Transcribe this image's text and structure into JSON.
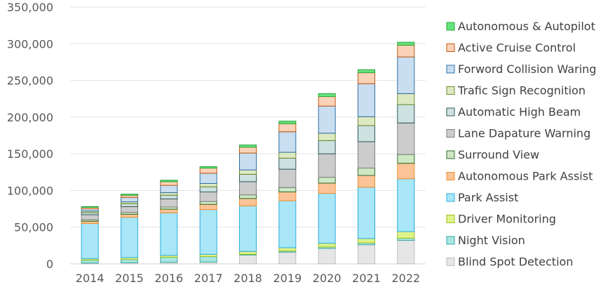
{
  "chart_data": {
    "type": "bar",
    "stacked": true,
    "title": "",
    "xlabel": "",
    "ylabel": "",
    "ylim": [
      0,
      350000
    ],
    "yticks": [
      0,
      50000,
      100000,
      150000,
      200000,
      250000,
      300000,
      350000
    ],
    "ytick_labels": [
      "0",
      "50,000",
      "100,000",
      "150,000",
      "200,000",
      "250,000",
      "300,000",
      "350,000"
    ],
    "grid": true,
    "legend_position": "right",
    "categories": [
      "2014",
      "2015",
      "2016",
      "2017",
      "2018",
      "2019",
      "2020",
      "2021",
      "2022"
    ],
    "series": [
      {
        "name": "Blind Spot Detection",
        "color": "#e6e6e6",
        "edge": "#bfbfbf",
        "values": [
          1000,
          1500,
          2000,
          2500,
          12000,
          16000,
          21000,
          26000,
          32000
        ]
      },
      {
        "name": "Night Vision",
        "color": "#a8e6e0",
        "edge": "#3aa8a0",
        "values": [
          4000,
          4500,
          7000,
          7500,
          1000,
          1500,
          2000,
          2500,
          3000
        ]
      },
      {
        "name": "Driver Monitoring",
        "color": "#dff28a",
        "edge": "#9ec21f",
        "values": [
          2000,
          2500,
          2500,
          3000,
          4000,
          4500,
          5000,
          6000,
          9000
        ]
      },
      {
        "name": "Park Assist",
        "color": "#a9e6f7",
        "edge": "#2aaee0",
        "values": [
          48000,
          55000,
          58000,
          61000,
          62000,
          64000,
          68000,
          70000,
          72000
        ]
      },
      {
        "name": "Autonomous Park Assist",
        "color": "#fbc497",
        "edge": "#f28e2c",
        "values": [
          3000,
          4000,
          5000,
          7000,
          10000,
          12000,
          14000,
          16000,
          21000
        ]
      },
      {
        "name": "Surround View",
        "color": "#cfe8c4",
        "edge": "#2e6b2e",
        "values": [
          2000,
          2500,
          3000,
          4000,
          5000,
          6000,
          8000,
          10000,
          12000
        ]
      },
      {
        "name": "Lane Dapature Warning",
        "color": "#cccccc",
        "edge": "#7f7f7f",
        "values": [
          7000,
          8000,
          11000,
          13000,
          18000,
          25000,
          32000,
          36000,
          43000
        ]
      },
      {
        "name": "Automatic High Beam",
        "color": "#cde2e0",
        "edge": "#31595a",
        "values": [
          3000,
          4000,
          5000,
          7000,
          10000,
          15000,
          18000,
          22000,
          25000
        ]
      },
      {
        "name": "Trafic Sign Recognition",
        "color": "#dde9c3",
        "edge": "#6e8a2c",
        "values": [
          2000,
          2500,
          3500,
          4500,
          6000,
          8000,
          10000,
          12000,
          15000
        ]
      },
      {
        "name": "Forword Collision Waring",
        "color": "#c9def0",
        "edge": "#2f6fa3",
        "values": [
          3000,
          6000,
          10000,
          14000,
          23000,
          28000,
          37000,
          45000,
          50000
        ]
      },
      {
        "name": "Active Cruise Control",
        "color": "#fad2b8",
        "edge": "#c55a11",
        "values": [
          2000,
          3000,
          5000,
          7000,
          8000,
          11000,
          13000,
          15000,
          16000
        ]
      },
      {
        "name": "Autonomous & Autopilot",
        "color": "#66e37d",
        "edge": "#27a83c",
        "values": [
          1000,
          1500,
          2000,
          2000,
          3000,
          3500,
          4000,
          4000,
          4000
        ]
      }
    ]
  }
}
